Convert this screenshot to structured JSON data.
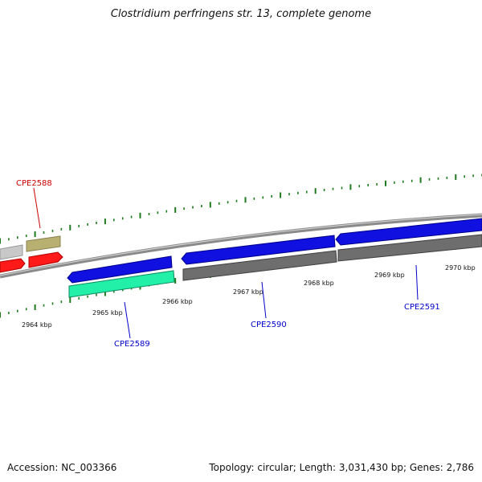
{
  "title": "Clostridium perfringens str. 13, complete genome",
  "footer": {
    "accession": "Accession: NC_003366",
    "summary": "Topology: circular; Length: 3,031,430 bp; Genes: 2,786"
  },
  "colors": {
    "backbone": "#8a8a8a",
    "tick": "#1f7a1f",
    "cds_forward": "#1010e0",
    "cds_reverse_grey": "#6e6e6e",
    "rna_cyan": "#22f0a8",
    "red": "#ff1a1a",
    "olive": "#b8b070",
    "light_grey": "#c8c8c8",
    "label_red": "#cc0000",
    "label_blue": "#0000cc"
  },
  "kbp_labels": [
    "2964 kbp",
    "2965 kbp",
    "2966 kbp",
    "2967 kbp",
    "2968 kbp",
    "2969 kbp",
    "2970 kbp"
  ],
  "gene_labels": [
    {
      "name": "CPE2588",
      "color": "red"
    },
    {
      "name": "CPE2589",
      "color": "blue"
    },
    {
      "name": "CPE2590",
      "color": "blue"
    },
    {
      "name": "CPE2591",
      "color": "blue"
    }
  ]
}
